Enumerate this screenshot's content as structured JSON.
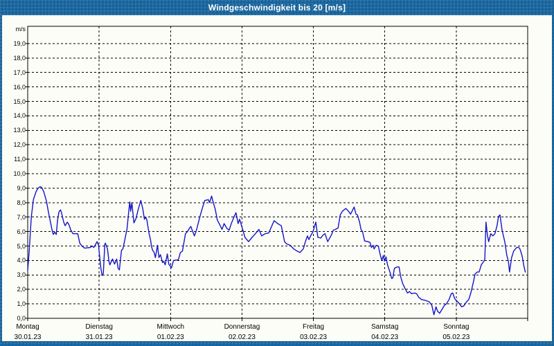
{
  "window": {
    "title": "Windgeschwindigkeit bis 20 [m/s]"
  },
  "colors": {
    "chrome_blue": "#1c69a0",
    "series_blue": "#1313cb",
    "plot_background": "#fcfdf7",
    "grid_color": "#000000"
  },
  "chart_data": {
    "type": "line",
    "title": "Windgeschwindigkeit bis 20 [m/s]",
    "unit_label": "m/s",
    "grid": "dashed-on",
    "legend": "none",
    "y_axis": {
      "min": 0,
      "max": 20,
      "tick_step": 1,
      "tick_labels": [
        "0,0",
        "1,0",
        "2,0",
        "3,0",
        "4,0",
        "5,0",
        "6,0",
        "7,0",
        "8,0",
        "9,0",
        "10,0",
        "11,0",
        "12,0",
        "13,0",
        "14,0",
        "15,0",
        "16,0",
        "17,0",
        "18,0",
        "19,0"
      ]
    },
    "x_axis": {
      "hours_total": 168,
      "days": [
        {
          "name": "Montag",
          "date": "30.01.23"
        },
        {
          "name": "Dienstag",
          "date": "31.01.23"
        },
        {
          "name": "Mittwoch",
          "date": "01.02.23"
        },
        {
          "name": "Donnerstag",
          "date": "02.02.23"
        },
        {
          "name": "Freitag",
          "date": "03.02.23"
        },
        {
          "name": "Samstag",
          "date": "04.02.23"
        },
        {
          "name": "Sonntag",
          "date": "05.02.23"
        }
      ]
    },
    "series": [
      {
        "name": "Windgeschwindigkeit [m/s]",
        "color": "#1313cb",
        "points": [
          [
            0,
            3.3
          ],
          [
            0.5,
            4.6
          ],
          [
            1.2,
            7.0
          ],
          [
            1.9,
            8.2
          ],
          [
            2.8,
            8.75
          ],
          [
            3.5,
            9.0
          ],
          [
            4.2,
            9.1
          ],
          [
            4.7,
            9.05
          ],
          [
            5.4,
            8.75
          ],
          [
            6.3,
            8.1
          ],
          [
            7,
            7.3
          ],
          [
            7.7,
            6.6
          ],
          [
            8.2,
            6.1
          ],
          [
            8.6,
            5.8
          ],
          [
            9.1,
            5.95
          ],
          [
            9.6,
            5.8
          ],
          [
            10,
            6.75
          ],
          [
            10.5,
            7.35
          ],
          [
            11,
            7.5
          ],
          [
            11.3,
            7.35
          ],
          [
            12.1,
            6.65
          ],
          [
            12.6,
            6.4
          ],
          [
            13.3,
            6.65
          ],
          [
            13.8,
            6.5
          ],
          [
            14.5,
            6.1
          ],
          [
            15.2,
            5.85
          ],
          [
            16.8,
            5.85
          ],
          [
            17.5,
            5.2
          ],
          [
            18.2,
            5.0
          ],
          [
            19.1,
            4.85
          ],
          [
            21,
            4.9
          ],
          [
            21.7,
            5.0
          ],
          [
            22.2,
            4.9
          ],
          [
            22.9,
            5.15
          ],
          [
            23.3,
            5.3
          ],
          [
            23.8,
            5.05
          ],
          [
            24.5,
            3.6
          ],
          [
            25,
            2.95
          ],
          [
            25.4,
            3.1
          ],
          [
            25.9,
            5.1
          ],
          [
            26.1,
            5.2
          ],
          [
            26.8,
            4.8
          ],
          [
            27.3,
            3.95
          ],
          [
            27.6,
            3.7
          ],
          [
            28.5,
            4.1
          ],
          [
            29.2,
            3.75
          ],
          [
            29.9,
            4.1
          ],
          [
            30.4,
            3.45
          ],
          [
            30.8,
            3.35
          ],
          [
            31.5,
            4.7
          ],
          [
            32,
            4.8
          ],
          [
            32.7,
            5.5
          ],
          [
            33.4,
            6.2
          ],
          [
            33.9,
            7.3
          ],
          [
            34.3,
            8.05
          ],
          [
            34.6,
            7.4
          ],
          [
            35,
            8.0
          ],
          [
            35.7,
            6.6
          ],
          [
            36.4,
            6.9
          ],
          [
            37.1,
            7.5
          ],
          [
            38,
            8.15
          ],
          [
            38.7,
            7.55
          ],
          [
            39.2,
            6.85
          ],
          [
            39.7,
            7.0
          ],
          [
            40.1,
            6.75
          ],
          [
            40.4,
            6.35
          ],
          [
            40.8,
            5.85
          ],
          [
            41.3,
            5.4
          ],
          [
            41.6,
            4.95
          ],
          [
            42,
            4.7
          ],
          [
            42.5,
            4.55
          ],
          [
            42.9,
            4.2
          ],
          [
            43.6,
            5.05
          ],
          [
            44.1,
            4.2
          ],
          [
            44.6,
            4.4
          ],
          [
            45.3,
            3.85
          ],
          [
            45.7,
            3.95
          ],
          [
            46.2,
            3.7
          ],
          [
            46.9,
            4.45
          ],
          [
            47.4,
            3.75
          ],
          [
            48.3,
            3.5
          ],
          [
            49,
            4.0
          ],
          [
            50.6,
            4.05
          ],
          [
            51.3,
            4.55
          ],
          [
            52,
            4.65
          ],
          [
            53,
            5.85
          ],
          [
            53.7,
            6.0
          ],
          [
            54.4,
            6.25
          ],
          [
            54.8,
            6.35
          ],
          [
            56,
            5.7
          ],
          [
            56.7,
            6.1
          ],
          [
            57.9,
            7.05
          ],
          [
            58.8,
            7.7
          ],
          [
            59.5,
            8.15
          ],
          [
            60.7,
            8.2
          ],
          [
            61.1,
            8.0
          ],
          [
            61.8,
            8.45
          ],
          [
            62.5,
            7.9
          ],
          [
            63,
            7.55
          ],
          [
            63.7,
            6.8
          ],
          [
            64.6,
            6.45
          ],
          [
            65.3,
            6.15
          ],
          [
            66,
            6.55
          ],
          [
            67,
            6.2
          ],
          [
            67.7,
            6.1
          ],
          [
            68.4,
            6.55
          ],
          [
            69.3,
            7.0
          ],
          [
            70,
            7.3
          ],
          [
            70.7,
            6.55
          ],
          [
            71.2,
            6.85
          ],
          [
            72.3,
            6.1
          ],
          [
            73,
            5.6
          ],
          [
            74.2,
            5.3
          ],
          [
            75.4,
            5.6
          ],
          [
            76.5,
            5.85
          ],
          [
            77.7,
            6.15
          ],
          [
            78.6,
            5.7
          ],
          [
            79.8,
            5.85
          ],
          [
            81,
            5.9
          ],
          [
            82.8,
            6.75
          ],
          [
            84,
            6.55
          ],
          [
            85.2,
            6.4
          ],
          [
            86.3,
            5.3
          ],
          [
            87,
            5.15
          ],
          [
            88.2,
            5.05
          ],
          [
            89.4,
            4.8
          ],
          [
            90.5,
            4.65
          ],
          [
            91.5,
            4.55
          ],
          [
            92.6,
            4.8
          ],
          [
            93.3,
            5.3
          ],
          [
            94,
            5.7
          ],
          [
            94.5,
            5.45
          ],
          [
            95.2,
            5.75
          ],
          [
            95.9,
            6.0
          ],
          [
            96.8,
            6.65
          ],
          [
            97.5,
            5.6
          ],
          [
            98.5,
            5.55
          ],
          [
            99.2,
            5.75
          ],
          [
            99.9,
            5.85
          ],
          [
            100.8,
            5.3
          ],
          [
            102,
            5.75
          ],
          [
            102.7,
            6.1
          ],
          [
            103.4,
            6.15
          ],
          [
            104.3,
            6.25
          ],
          [
            105,
            7.15
          ],
          [
            105.7,
            7.4
          ],
          [
            106.9,
            7.6
          ],
          [
            107.8,
            7.4
          ],
          [
            108.5,
            7.2
          ],
          [
            109.2,
            7.5
          ],
          [
            109.7,
            7.7
          ],
          [
            110.3,
            7.2
          ],
          [
            110.8,
            7.15
          ],
          [
            111.5,
            6.65
          ],
          [
            112,
            6.15
          ],
          [
            112.5,
            6.0
          ],
          [
            113.2,
            5.35
          ],
          [
            114.3,
            5.3
          ],
          [
            115,
            5.25
          ],
          [
            115.5,
            4.9
          ],
          [
            116,
            5.05
          ],
          [
            116.4,
            4.8
          ],
          [
            117.1,
            5.05
          ],
          [
            117.8,
            5.0
          ],
          [
            118.5,
            4.35
          ],
          [
            119,
            4.0
          ],
          [
            119.5,
            4.35
          ],
          [
            119.9,
            3.95
          ],
          [
            120.4,
            4.25
          ],
          [
            120.9,
            3.7
          ],
          [
            121.8,
            3.15
          ],
          [
            122.3,
            2.75
          ],
          [
            122.7,
            2.8
          ],
          [
            123.2,
            3.45
          ],
          [
            124.1,
            3.55
          ],
          [
            124.8,
            3.55
          ],
          [
            125.3,
            2.9
          ],
          [
            126,
            2.4
          ],
          [
            126.7,
            2.1
          ],
          [
            127.6,
            1.75
          ],
          [
            128.3,
            1.85
          ],
          [
            129,
            1.7
          ],
          [
            130,
            1.75
          ],
          [
            130.7,
            1.7
          ],
          [
            131.4,
            1.45
          ],
          [
            132.3,
            1.3
          ],
          [
            133.5,
            1.25
          ],
          [
            134.9,
            1.15
          ],
          [
            135.8,
            0.9
          ],
          [
            136.5,
            0.25
          ],
          [
            137.2,
            0.8
          ],
          [
            137.7,
            0.5
          ],
          [
            138.4,
            0.35
          ],
          [
            139.3,
            0.65
          ],
          [
            140,
            0.9
          ],
          [
            140.7,
            1.0
          ],
          [
            141.6,
            1.3
          ],
          [
            142.3,
            1.7
          ],
          [
            142.8,
            1.75
          ],
          [
            143.5,
            1.35
          ],
          [
            144.2,
            1.2
          ],
          [
            145.1,
            1.0
          ],
          [
            145.8,
            0.8
          ],
          [
            146.5,
            0.85
          ],
          [
            147.5,
            1.15
          ],
          [
            148.2,
            1.3
          ],
          [
            148.9,
            1.75
          ],
          [
            149.3,
            2.1
          ],
          [
            149.8,
            2.55
          ],
          [
            150.3,
            3.05
          ],
          [
            151,
            3.2
          ],
          [
            151.7,
            3.2
          ],
          [
            152.4,
            3.7
          ],
          [
            153.3,
            3.95
          ],
          [
            153.6,
            4.1
          ],
          [
            154,
            6.65
          ],
          [
            154.5,
            5.7
          ],
          [
            154.9,
            5.3
          ],
          [
            155.6,
            5.85
          ],
          [
            156.3,
            5.7
          ],
          [
            157,
            5.85
          ],
          [
            157.7,
            6.4
          ],
          [
            158.2,
            7.05
          ],
          [
            158.7,
            7.15
          ],
          [
            159.4,
            6.1
          ],
          [
            160.3,
            5.3
          ],
          [
            161,
            4.35
          ],
          [
            161.5,
            3.95
          ],
          [
            161.9,
            3.2
          ],
          [
            162.6,
            4.2
          ],
          [
            163.3,
            4.65
          ],
          [
            164.3,
            4.9
          ],
          [
            165,
            4.9
          ],
          [
            165.4,
            4.8
          ],
          [
            166.1,
            4.35
          ],
          [
            166.8,
            3.55
          ],
          [
            167.2,
            3.2
          ]
        ]
      }
    ]
  }
}
